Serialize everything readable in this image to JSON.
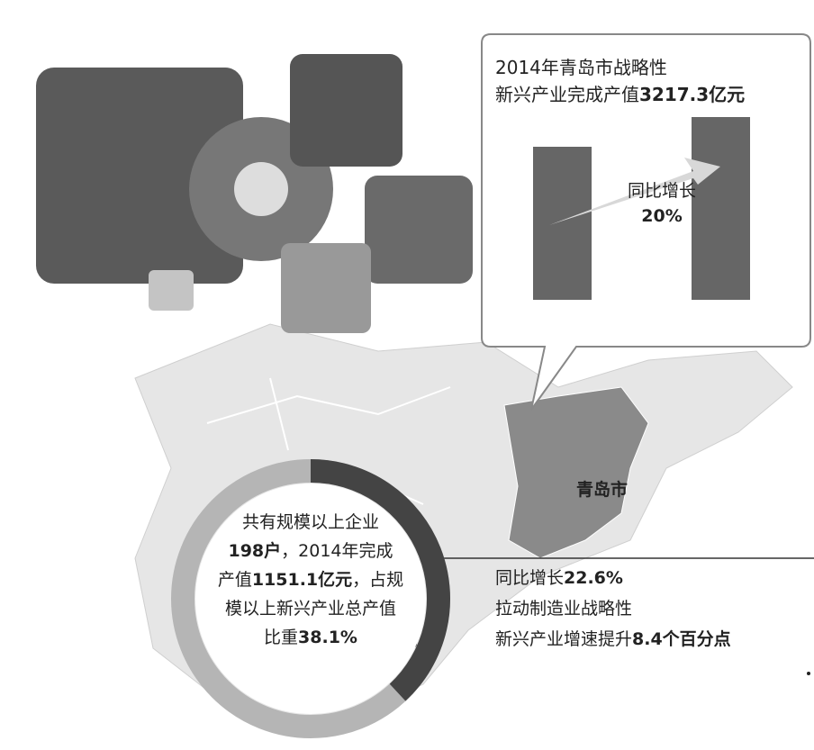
{
  "callout": {
    "title": [
      [
        {
          "t": "2014年青岛市战略性"
        }
      ],
      [
        {
          "t": "新兴产业完成产值"
        },
        {
          "t": "3217.3亿元",
          "b": true
        }
      ]
    ],
    "growth": [
      [
        {
          "t": "同比增长"
        }
      ],
      [
        {
          "t": "20%",
          "b": true
        }
      ]
    ]
  },
  "map_label": "青岛市",
  "ring": {
    "share": 38.1,
    "lines": [
      [
        {
          "t": "共有规模以上企业"
        }
      ],
      [
        {
          "t": "198户",
          "b": true
        },
        {
          "t": "，2014年完成"
        }
      ],
      [
        {
          "t": "产值"
        },
        {
          "t": "1151.1亿元",
          "b": true
        },
        {
          "t": "，占规"
        }
      ],
      [
        {
          "t": "模以上新兴产业总产值"
        }
      ],
      [
        {
          "t": "比重"
        },
        {
          "t": "38.1%",
          "b": true
        }
      ]
    ]
  },
  "note": {
    "lines": [
      [
        {
          "t": "同比增长"
        },
        {
          "t": "22.6%",
          "b": true
        }
      ],
      [
        {
          "t": "拉动制造业战略性"
        }
      ],
      [
        {
          "t": "新兴产业增速提升"
        },
        {
          "t": "8.4个百分点",
          "b": true
        }
      ]
    ]
  }
}
